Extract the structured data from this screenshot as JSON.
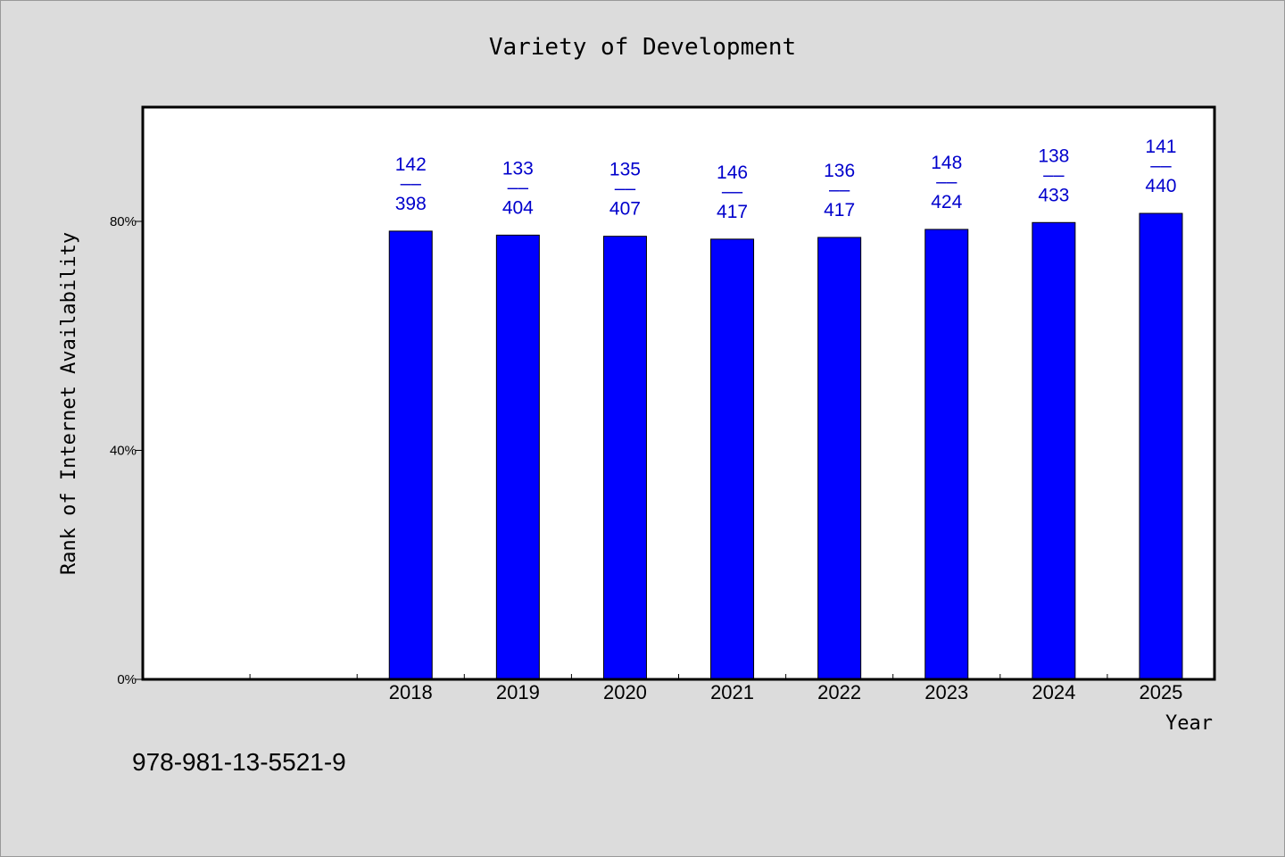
{
  "chart_data": {
    "type": "bar",
    "title": "Variety of Development",
    "xlabel": "Year",
    "ylabel": "Rank of Internet Availability",
    "categories": [
      "",
      "",
      "2018",
      "2019",
      "2020",
      "2021",
      "2022",
      "2023",
      "2024",
      "2025"
    ],
    "values": [
      null,
      null,
      78.3,
      77.6,
      77.4,
      76.9,
      77.2,
      78.6,
      79.8,
      81.4
    ],
    "data_labels": [
      [
        "",
        ""
      ],
      [
        "",
        ""
      ],
      [
        "142",
        "398"
      ],
      [
        "133",
        "404"
      ],
      [
        "135",
        "407"
      ],
      [
        "146",
        "417"
      ],
      [
        "136",
        "417"
      ],
      [
        "148",
        "424"
      ],
      [
        "138",
        "433"
      ],
      [
        "141",
        "440"
      ]
    ],
    "label_separator": "––",
    "yticks": [
      {
        "value": 0,
        "label": "0%"
      },
      {
        "value": 40,
        "label": "40%"
      },
      {
        "value": 80,
        "label": "80%"
      }
    ],
    "ylim": [
      0,
      100
    ],
    "grid": false,
    "colors": {
      "bar": "#0000ff",
      "label": "#0000cc",
      "background": "#dcdcdc",
      "plot_background": "#ffffff"
    }
  },
  "footer": {
    "isbn": "978-981-13-5521-9"
  }
}
